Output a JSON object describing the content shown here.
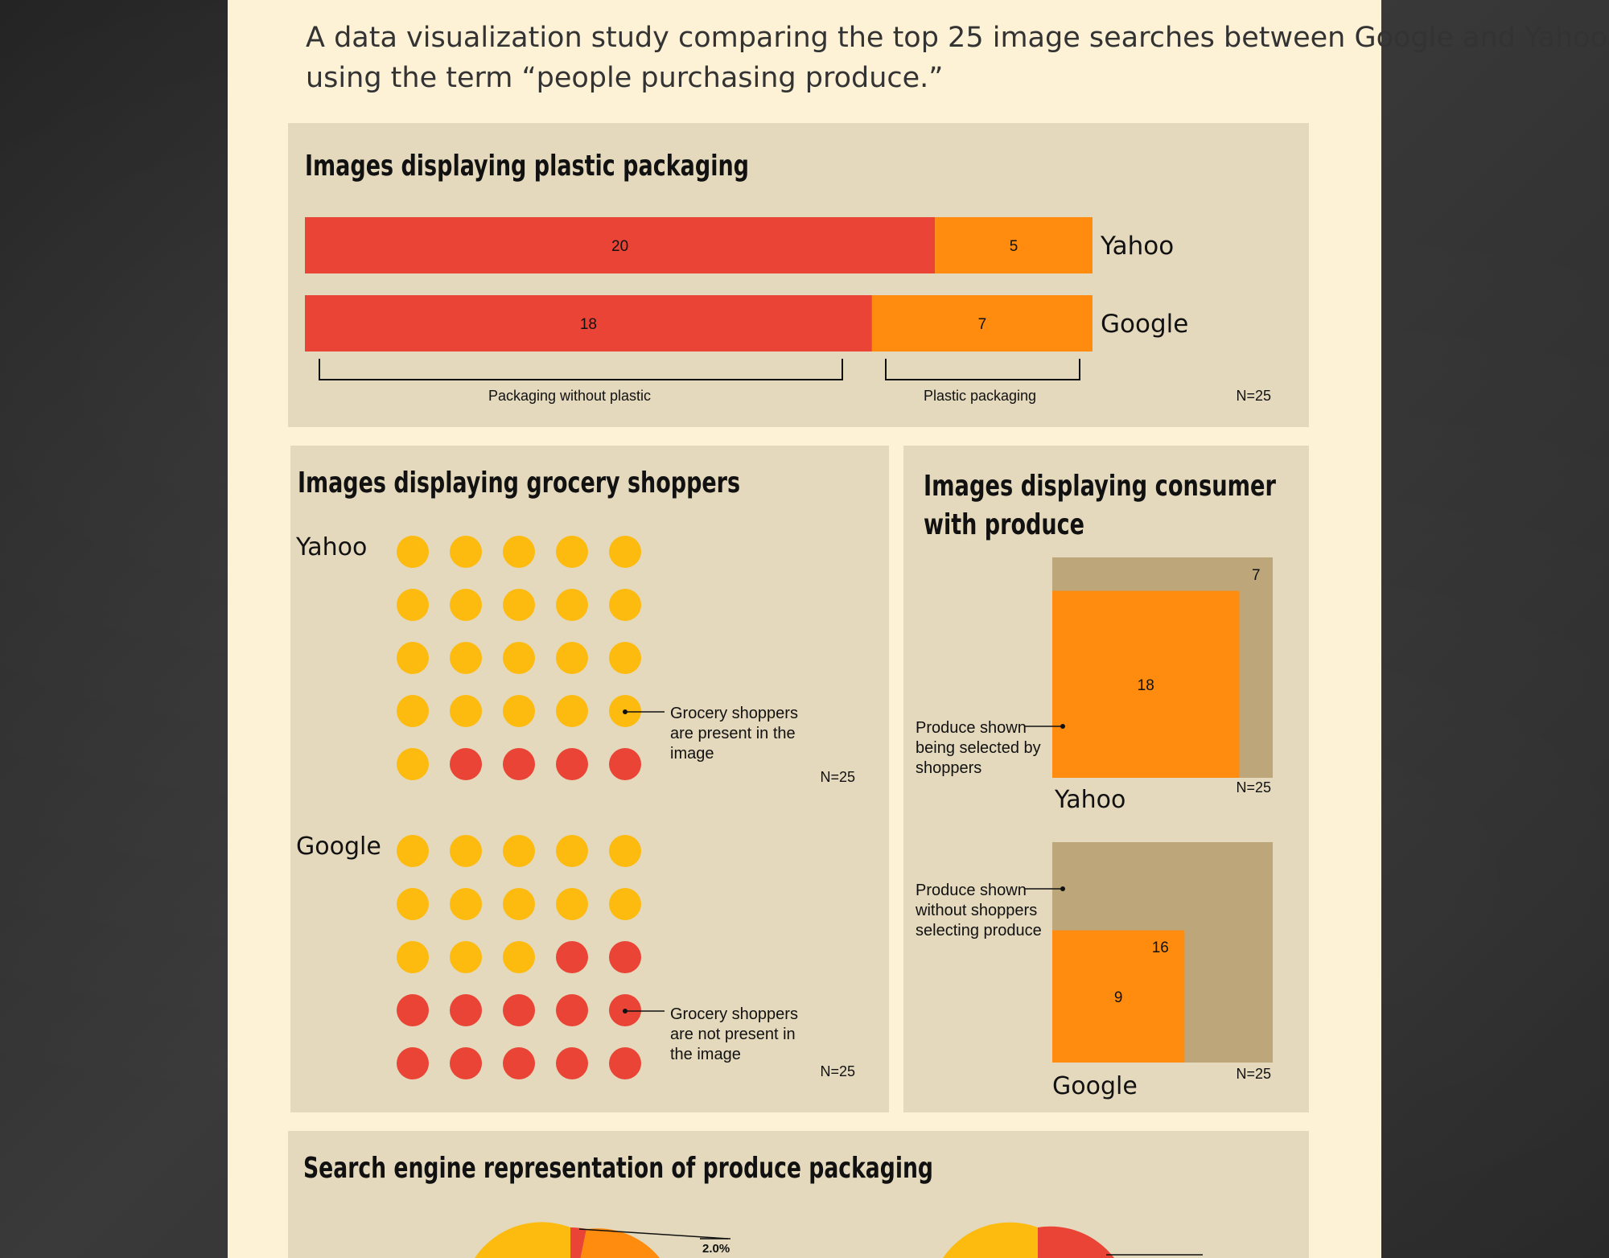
{
  "intro": {
    "line1": "A data visualization study comparing the top 25 image searches between Google and Yahoo",
    "line2": "using the term “people purchasing produce.”"
  },
  "colors": {
    "page_bg": "#2c2c2c",
    "poster": "#fdf1d6",
    "panel": "#e5d9bd",
    "red": "#e94435",
    "orange": "#ff8c0f",
    "yellow": "#fdbb10",
    "tan": "#bca67a",
    "text": "#111111"
  },
  "plastic": {
    "title": "Images displaying plastic packaging",
    "bars": [
      {
        "engine": "Yahoo",
        "without_plastic": 20,
        "plastic": 5
      },
      {
        "engine": "Google",
        "without_plastic": 18,
        "plastic": 7
      }
    ],
    "label_without": "Packaging without plastic",
    "label_plastic": "Plastic packaging",
    "n_label": "N=25"
  },
  "shoppers": {
    "title": "Images displaying grocery shoppers",
    "groups": [
      {
        "engine": "Yahoo",
        "present": 21,
        "not_present": 4,
        "n_label": "N=25"
      },
      {
        "engine": "Google",
        "present": 13,
        "not_present": 12,
        "n_label": "N=25"
      }
    ],
    "annotation_present": [
      "Grocery shoppers",
      "are present in the",
      "image"
    ],
    "annotation_not_present": [
      "Grocery shoppers",
      "are not present in",
      "the image"
    ]
  },
  "consumer": {
    "title_line1": "Images displaying consumer",
    "title_line2": "with produce",
    "groups": [
      {
        "engine": "Yahoo",
        "selected": 18,
        "not_selected": 7,
        "n_label": "N=25"
      },
      {
        "engine": "Google",
        "selected": 9,
        "not_selected": 16,
        "n_label": "N=25"
      }
    ],
    "annotation_selected": [
      "Produce shown",
      "being selected by",
      "shoppers"
    ],
    "annotation_not_selected": [
      "Produce shown",
      "without shoppers",
      "selecting produce"
    ]
  },
  "representation": {
    "title": "Search engine representation of produce packaging",
    "visible_slice_label": "2.0%"
  },
  "chart_data": [
    {
      "type": "bar",
      "orientation": "horizontal",
      "stacked": true,
      "title": "Images displaying plastic packaging",
      "categories": [
        "Yahoo",
        "Google"
      ],
      "series": [
        {
          "name": "Packaging without plastic",
          "values": [
            20,
            18
          ]
        },
        {
          "name": "Plastic packaging",
          "values": [
            5,
            7
          ]
        }
      ],
      "xlim": [
        0,
        25
      ],
      "annotation": "N=25"
    },
    {
      "type": "scatter",
      "subtype": "dot-matrix",
      "title": "Images displaying grocery shoppers",
      "categories": [
        "Yahoo",
        "Google"
      ],
      "series": [
        {
          "name": "Grocery shoppers are present in the image",
          "values": [
            21,
            13
          ]
        },
        {
          "name": "Grocery shoppers are not present in the image",
          "values": [
            4,
            12
          ]
        }
      ],
      "annotation": "N=25"
    },
    {
      "type": "area",
      "subtype": "proportional-square",
      "title": "Images displaying consumer with produce",
      "categories": [
        "Yahoo",
        "Google"
      ],
      "series": [
        {
          "name": "Produce shown being selected by shoppers",
          "values": [
            18,
            9
          ]
        },
        {
          "name": "Produce shown without shoppers selecting produce",
          "values": [
            7,
            16
          ]
        }
      ],
      "annotation": "N=25"
    }
  ]
}
